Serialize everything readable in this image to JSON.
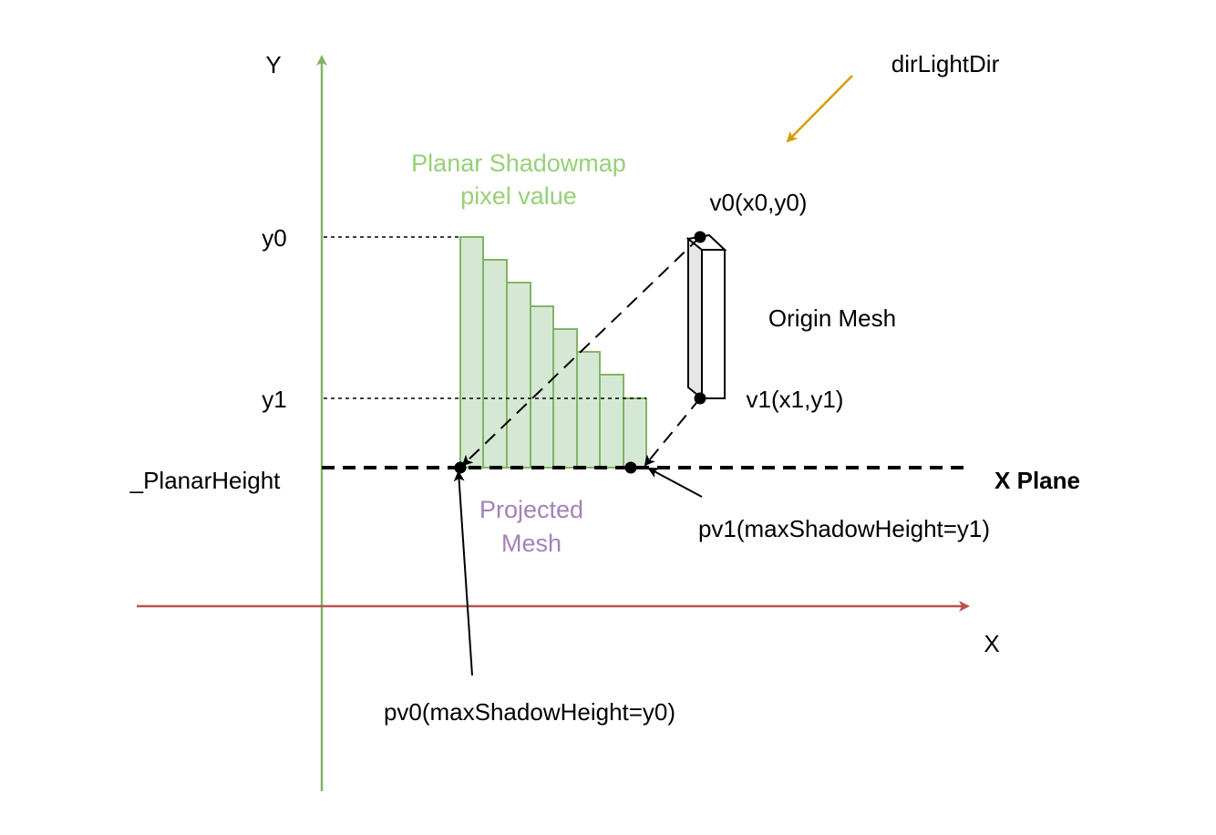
{
  "labels": {
    "y_axis": "Y",
    "x_axis": "X",
    "light_dir": "dirLightDir",
    "shadowmap_line1": "Planar Shadowmap",
    "shadowmap_line2": "pixel value",
    "v0": "v0(x0,y0)",
    "v1": "v1(x1,y1)",
    "origin_mesh": "Origin Mesh",
    "y0": "y0",
    "y1": "y1",
    "planar_height": "_PlanarHeight",
    "x_plane": "X Plane",
    "projected_line1": "Projected",
    "projected_line2": "Mesh",
    "pv1": "pv1(maxShadowHeight=y1)",
    "pv0": "pv0(maxShadowHeight=y0)"
  },
  "colors": {
    "y_axis": "#82b366",
    "x_axis": "#b85450",
    "light_arrow": "#d79b00",
    "shadow_fill": "#d5e8d4",
    "shadow_stroke": "#82b366",
    "shadow_text": "#97d077",
    "projected_text": "#a680b8",
    "mesh_side": "#e6e6e6"
  }
}
